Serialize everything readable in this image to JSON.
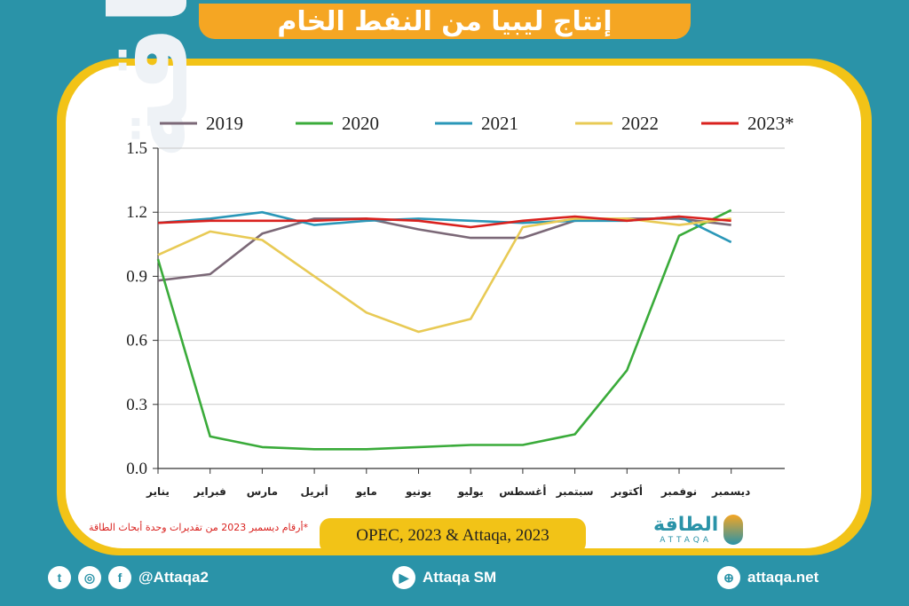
{
  "title": "إنتاج ليبيا من النفط الخام",
  "footnote": "*أرقام ديسمبر 2023 من تقديرات وحدة أبحاث الطاقة",
  "source": "OPEC, 2023 & Attaqa, 2023",
  "logo": {
    "arabic": "الطاقة",
    "english": "ATTAQA"
  },
  "watermark": "الطاقة",
  "footer": {
    "social_handle": "@Attaqa2",
    "youtube_label": "Attaqa SM",
    "website": "attaqa.net"
  },
  "colors": {
    "background": "#2a93a8",
    "banner": "#f5a623",
    "panel": "#f2c317",
    "s2019": "#7b6877",
    "s2020": "#3aab3a",
    "s2021": "#2a97b8",
    "s2022": "#e8ca55",
    "s2023": "#d9211e"
  },
  "chart_data": {
    "type": "line",
    "categories": [
      "يناير",
      "فبراير",
      "مارس",
      "أبريل",
      "مايو",
      "يونيو",
      "يوليو",
      "أغسطس",
      "سبتمبر",
      "أكتوبر",
      "نوفمبر",
      "ديسمبر"
    ],
    "ylim": [
      0,
      1.5
    ],
    "yticks": [
      "0.0",
      "0.3",
      "0.6",
      "0.9",
      "1.2",
      "1.5"
    ],
    "grid": true,
    "legend_position": "top",
    "series": [
      {
        "name": "2019",
        "color": "#7b6877",
        "values": [
          0.88,
          0.91,
          1.1,
          1.17,
          1.17,
          1.12,
          1.08,
          1.08,
          1.16,
          1.17,
          1.17,
          1.14
        ]
      },
      {
        "name": "2020",
        "color": "#3aab3a",
        "values": [
          0.98,
          0.15,
          0.1,
          0.09,
          0.09,
          0.1,
          0.11,
          0.11,
          0.16,
          0.46,
          1.09,
          1.21
        ]
      },
      {
        "name": "2021",
        "color": "#2a97b8",
        "values": [
          1.15,
          1.17,
          1.2,
          1.14,
          1.16,
          1.17,
          1.16,
          1.15,
          1.16,
          1.16,
          1.18,
          1.06
        ]
      },
      {
        "name": "2022",
        "color": "#e8ca55",
        "values": [
          1.0,
          1.11,
          1.07,
          0.9,
          0.73,
          0.64,
          0.7,
          1.13,
          1.17,
          1.17,
          1.14,
          1.17
        ]
      },
      {
        "name": "2023*",
        "color": "#d9211e",
        "values": [
          1.15,
          1.16,
          1.16,
          1.16,
          1.17,
          1.16,
          1.13,
          1.16,
          1.18,
          1.16,
          1.18,
          1.16
        ]
      }
    ]
  }
}
